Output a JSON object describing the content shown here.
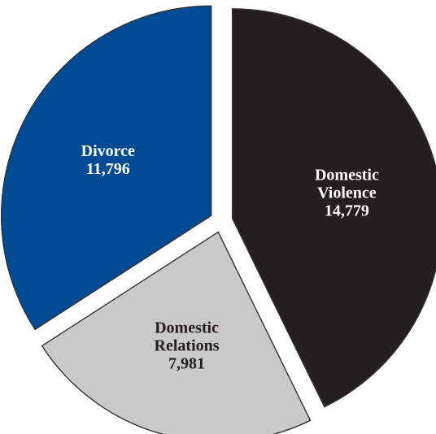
{
  "chart_data": {
    "type": "pie",
    "title": "",
    "slices": [
      {
        "lines": [
          "Domestic",
          "Violence"
        ],
        "label": "Domestic Violence",
        "value": 14779,
        "value_label": "14,779",
        "color": "#231f20",
        "text_color": "#ffffff"
      },
      {
        "lines": [
          "Domestic",
          "Relations"
        ],
        "label": "Domestic Relations",
        "value": 7981,
        "value_label": "7,981",
        "color": "#c9c9c9",
        "text_color": "#231f20"
      },
      {
        "lines": [
          "Divorce"
        ],
        "label": "Divorce",
        "value": 11796,
        "value_label": "11,796",
        "color": "#004b93",
        "text_color": "#ffffff"
      }
    ]
  }
}
